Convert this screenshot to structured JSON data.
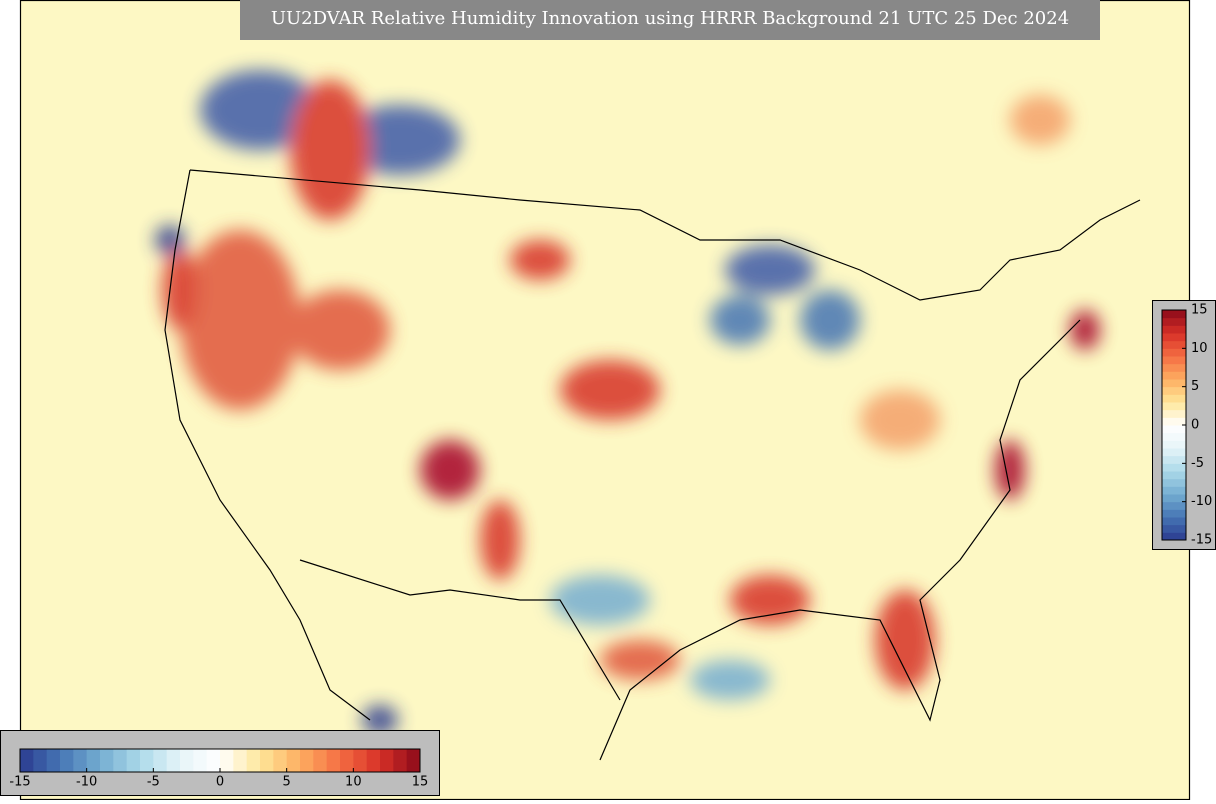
{
  "title": "UU2DVAR Relative Humidity Innovation using HRRR Background 21 UTC 25 Dec 2024",
  "colormap": [
    "#2b3a8f",
    "#4575b4",
    "#74add1",
    "#abd9e9",
    "#e6f4f8",
    "#ffffff",
    "#fee79a",
    "#fdae61",
    "#f46d43",
    "#d73027",
    "#8b0a1a"
  ],
  "colorbar_bottom": {
    "range": [
      -15,
      15
    ],
    "ticks": [
      -15,
      -10,
      -5,
      0,
      5,
      10,
      15
    ]
  },
  "colorbar_right": {
    "range": [
      -15,
      15
    ],
    "ticks": [
      15,
      10,
      5,
      0,
      -5,
      -10,
      -15
    ]
  }
}
